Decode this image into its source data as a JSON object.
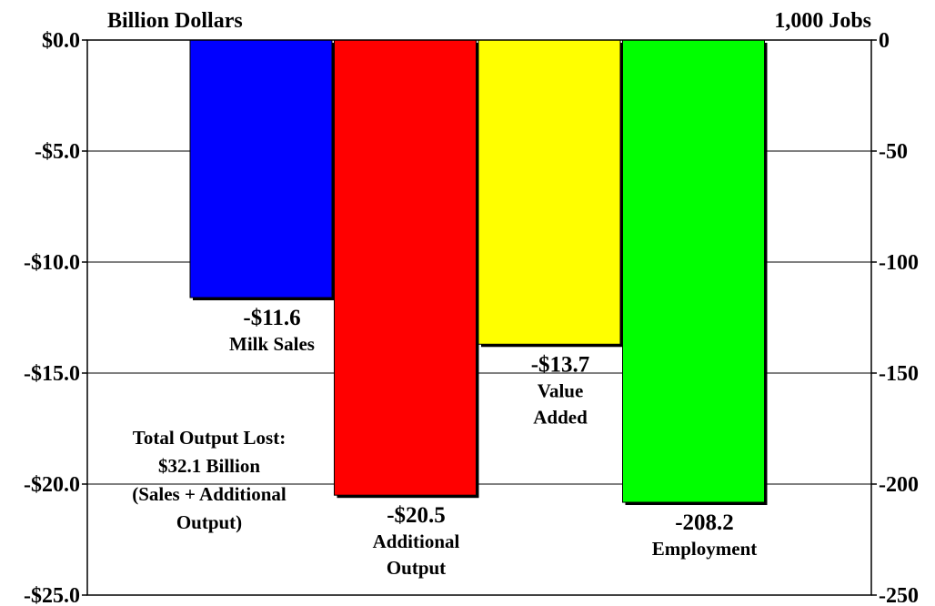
{
  "chart_data": {
    "type": "bar",
    "left_axis": {
      "title": "Billion Dollars",
      "range": [
        -25,
        0
      ],
      "ticks": [
        0,
        -5,
        -10,
        -15,
        -20,
        -25
      ],
      "tick_labels": [
        "$0.0",
        "-$5.0",
        "-$10.0",
        "-$15.0",
        "-$20.0",
        "-$25.0"
      ]
    },
    "right_axis": {
      "title": "1,000 Jobs",
      "range": [
        -250,
        0
      ],
      "ticks": [
        0,
        -50,
        -100,
        -150,
        -200,
        -250
      ],
      "tick_labels": [
        "0",
        "-50",
        "-100",
        "-150",
        "-200",
        "-250"
      ]
    },
    "grid": true,
    "bars": [
      {
        "name": "Milk Sales",
        "value": -11.6,
        "axis": "left",
        "color": "#0000ff",
        "value_label": "-$11.6",
        "category_lines": [
          "Milk Sales"
        ]
      },
      {
        "name": "Additional Output",
        "value": -20.5,
        "axis": "left",
        "color": "#ff0000",
        "value_label": "-$20.5",
        "category_lines": [
          "Additional",
          "Output"
        ]
      },
      {
        "name": "Value Added",
        "value": -13.7,
        "axis": "left",
        "color": "#ffff00",
        "value_label": "-$13.7",
        "category_lines": [
          "Value",
          "Added"
        ]
      },
      {
        "name": "Employment",
        "value": -208.2,
        "axis": "right",
        "color": "#00ff00",
        "value_label": "-208.2",
        "category_lines": [
          "Employment"
        ]
      }
    ],
    "annotation_lines": [
      "Total Output Lost:",
      "$32.1 Billion",
      "(Sales + Additional",
      "Output)"
    ]
  }
}
